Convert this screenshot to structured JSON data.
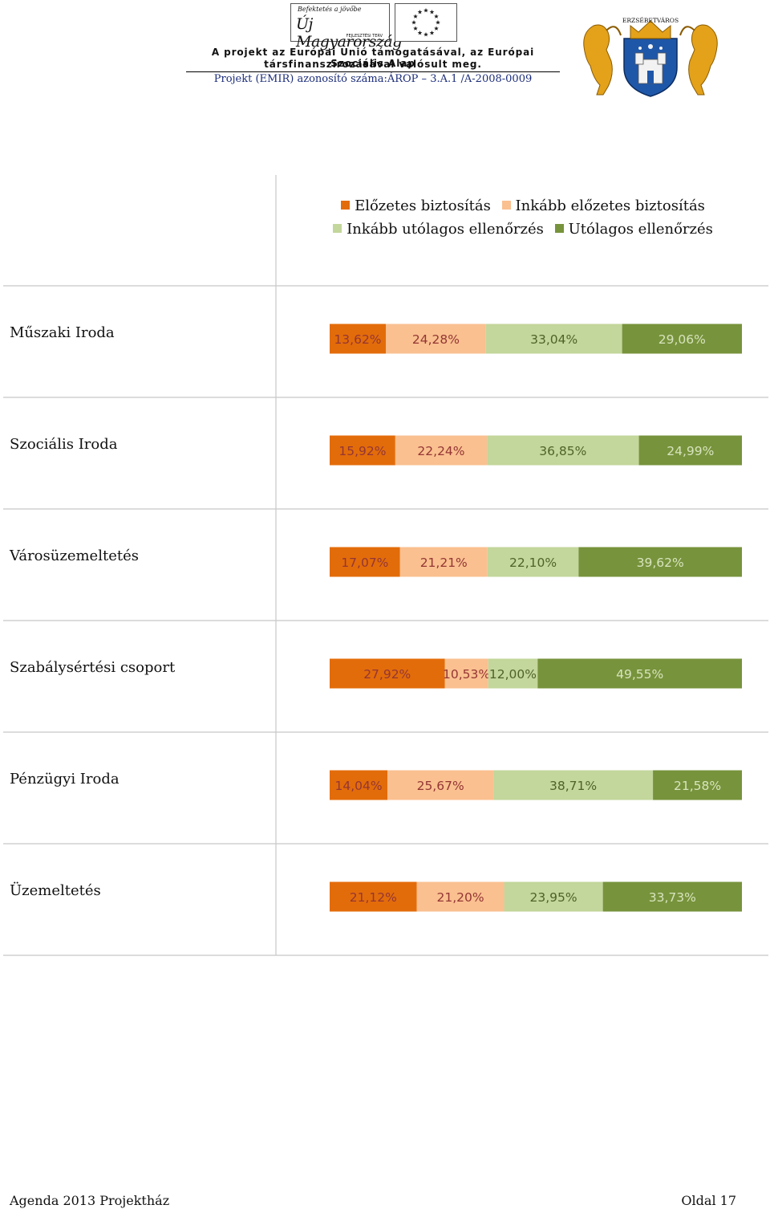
{
  "header": {
    "logo_um_small": "Befektetés a jövőbe",
    "logo_um_title": "Új Magyarország",
    "logo_um_sub": "FEJLESZTÉSI TERV",
    "line1": "A projekt az Európai Unió támogatásával, az Európai Szociális Alap",
    "line2": "társfinanszírozásával valósult meg.",
    "line3": "Projekt (EMIR) azonosító száma:ÁROP – 3.A.1 /A-2008-0009",
    "crest_text": "ERZSÉBETVÁROS"
  },
  "chart_data": {
    "type": "bar",
    "orientation": "horizontal",
    "stacked": "percent",
    "categories": [
      "Műszaki Iroda",
      "Szociális Iroda",
      "Városüzemeltetés",
      "Szabálysértési csoport",
      "Pénzügyi Iroda",
      "Üzemeltetés"
    ],
    "series": [
      {
        "name": "Előzetes biztosítás",
        "color": "#E36C0A",
        "label_color": "#943634",
        "values": [
          13.62,
          15.92,
          17.07,
          27.92,
          14.04,
          21.12
        ],
        "labels": [
          "13,62%",
          "15,92%",
          "17,07%",
          "27,92%",
          "14,04%",
          "21,12%"
        ]
      },
      {
        "name": "Inkább előzetes biztosítás",
        "color": "#FAC090",
        "label_color": "#943634",
        "values": [
          24.28,
          22.24,
          21.21,
          10.53,
          25.67,
          21.2
        ],
        "labels": [
          "24,28%",
          "22,24%",
          "21,21%",
          "10,53%",
          "25,67%",
          "21,20%"
        ]
      },
      {
        "name": "Inkább utólagos ellenőrzés",
        "color": "#C3D69B",
        "label_color": "#4F6228",
        "values": [
          33.04,
          36.85,
          22.1,
          12.0,
          38.71,
          23.95
        ],
        "labels": [
          "33,04%",
          "36,85%",
          "22,10%",
          "12,00%",
          "38,71%",
          "23,95%"
        ]
      },
      {
        "name": "Utólagos ellenőrzés",
        "color": "#77933C",
        "label_color": "#D7E4BD",
        "values": [
          29.06,
          24.99,
          39.62,
          49.55,
          21.58,
          33.73
        ],
        "labels": [
          "29,06%",
          "24,99%",
          "39,62%",
          "49,55%",
          "21,58%",
          "33,73%"
        ]
      }
    ],
    "legend_position": "top",
    "grid": false
  },
  "footer": {
    "left": "Agenda 2013 Projektház",
    "right": "Oldal 17"
  }
}
